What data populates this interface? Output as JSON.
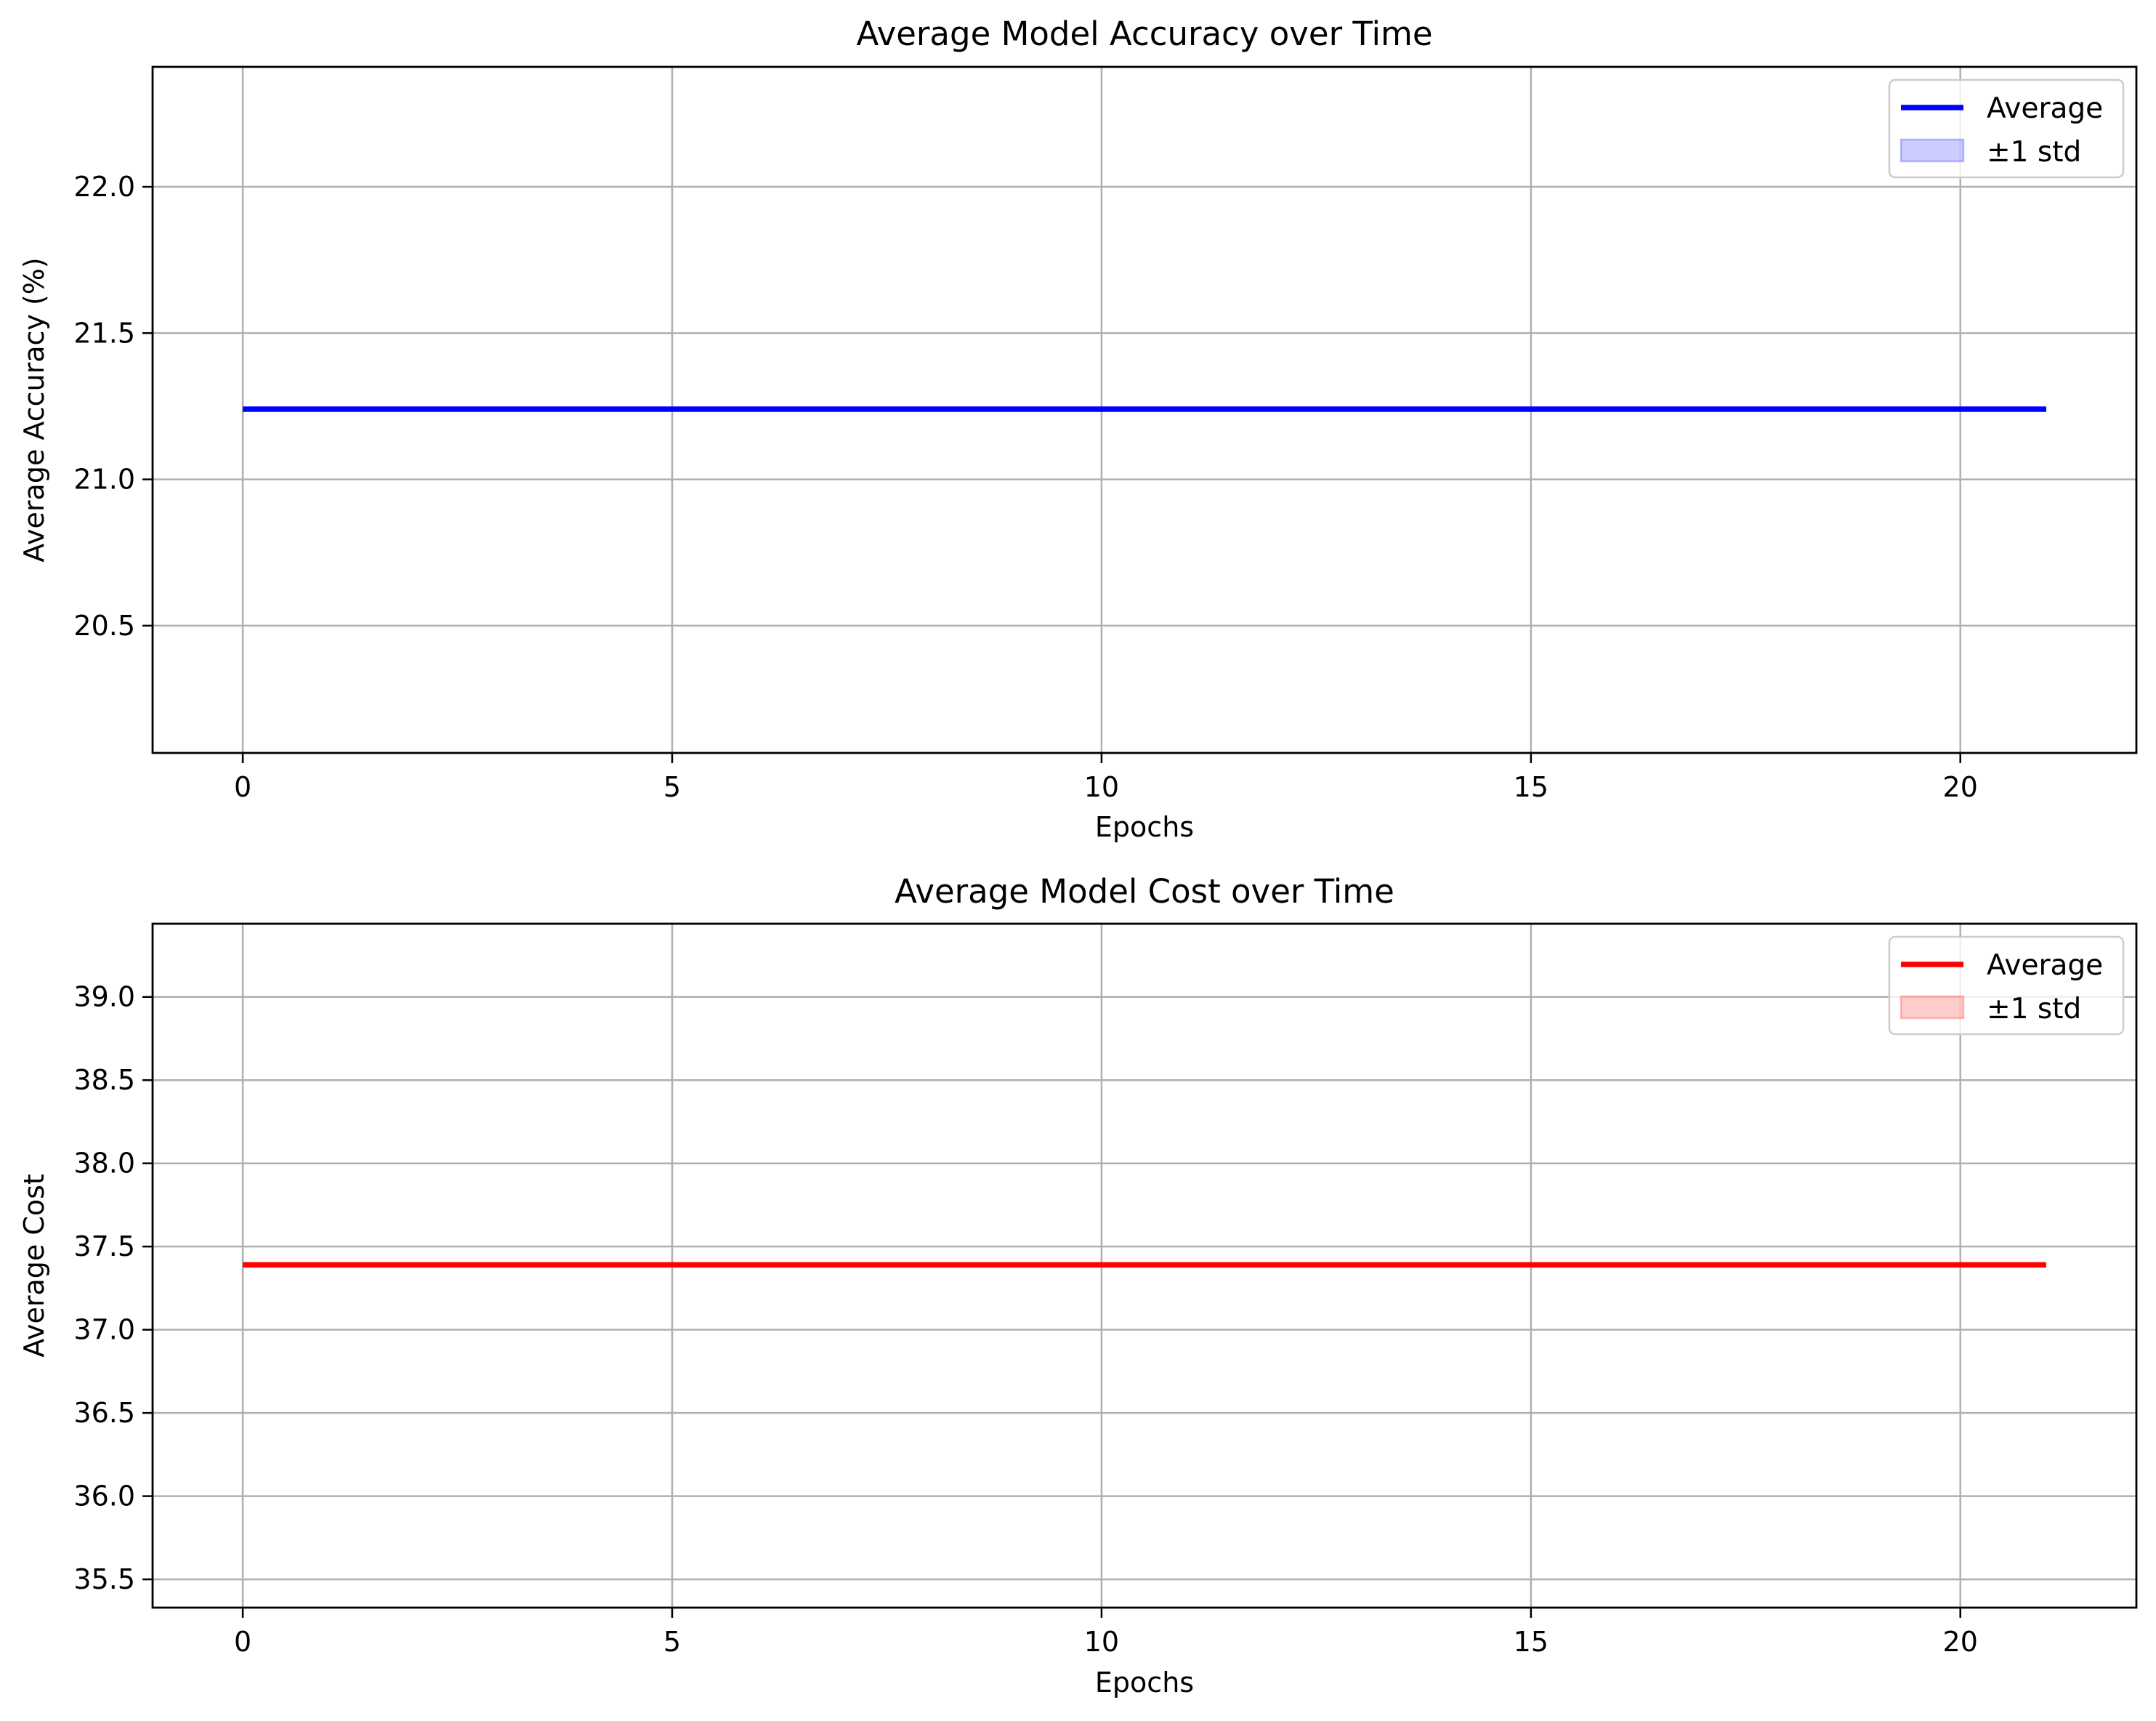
{
  "chart_data": [
    {
      "type": "line",
      "title": "Average Model Accuracy over Time",
      "xlabel": "Epochs",
      "ylabel": "Average Accuracy (%)",
      "xlim": [
        -1.05,
        22.05
      ],
      "ylim": [
        20.065,
        22.41
      ],
      "xticks": [
        0,
        5,
        10,
        15,
        20
      ],
      "xtick_labels": [
        "0",
        "5",
        "10",
        "15",
        "20"
      ],
      "yticks": [
        20.5,
        21.0,
        21.5,
        22.0
      ],
      "ytick_labels": [
        "20.5",
        "21.0",
        "21.5",
        "22.0"
      ],
      "grid": true,
      "legend_position": "top-right",
      "legend": [
        "Average",
        "±1 std"
      ],
      "series": [
        {
          "name": "Average",
          "color": "#0000ff",
          "x": [
            0,
            1,
            2,
            3,
            4,
            5,
            6,
            7,
            8,
            9,
            10,
            11,
            12,
            13,
            14,
            15,
            16,
            17,
            18,
            19,
            20,
            21
          ],
          "y": [
            21.24,
            21.24,
            21.24,
            21.24,
            21.24,
            21.24,
            21.24,
            21.24,
            21.24,
            21.24,
            21.24,
            21.24,
            21.24,
            21.24,
            21.24,
            21.24,
            21.24,
            21.24,
            21.24,
            21.24,
            21.24,
            21.24
          ]
        }
      ],
      "band": {
        "name": "±1 std",
        "color": "#0000ff",
        "lower": [
          21.24,
          21.24,
          21.24,
          21.24,
          21.24,
          21.24,
          21.24,
          21.24,
          21.24,
          21.24,
          21.24,
          21.24,
          21.24,
          21.24,
          21.24,
          21.24,
          21.24,
          21.24,
          21.24,
          21.24,
          21.24,
          21.24
        ],
        "upper": [
          21.24,
          21.24,
          21.24,
          21.24,
          21.24,
          21.24,
          21.24,
          21.24,
          21.24,
          21.24,
          21.24,
          21.24,
          21.24,
          21.24,
          21.24,
          21.24,
          21.24,
          21.24,
          21.24,
          21.24,
          21.24,
          21.24
        ]
      }
    },
    {
      "type": "line",
      "title": "Average Model Cost over Time",
      "xlabel": "Epochs",
      "ylabel": "Average Cost",
      "xlim": [
        -1.05,
        22.05
      ],
      "ylim": [
        35.33,
        39.44
      ],
      "xticks": [
        0,
        5,
        10,
        15,
        20
      ],
      "xtick_labels": [
        "0",
        "5",
        "10",
        "15",
        "20"
      ],
      "yticks": [
        35.5,
        36.0,
        36.5,
        37.0,
        37.5,
        38.0,
        38.5,
        39.0
      ],
      "ytick_labels": [
        "35.5",
        "36.0",
        "36.5",
        "37.0",
        "37.5",
        "38.0",
        "38.5",
        "39.0"
      ],
      "grid": true,
      "legend_position": "top-right",
      "legend": [
        "Average",
        "±1 std"
      ],
      "series": [
        {
          "name": "Average",
          "color": "#ff0000",
          "x": [
            0,
            1,
            2,
            3,
            4,
            5,
            6,
            7,
            8,
            9,
            10,
            11,
            12,
            13,
            14,
            15,
            16,
            17,
            18,
            19,
            20,
            21
          ],
          "y": [
            37.39,
            37.39,
            37.39,
            37.39,
            37.39,
            37.39,
            37.39,
            37.39,
            37.39,
            37.39,
            37.39,
            37.39,
            37.39,
            37.39,
            37.39,
            37.39,
            37.39,
            37.39,
            37.39,
            37.39,
            37.39,
            37.39
          ]
        }
      ],
      "band": {
        "name": "±1 std",
        "color": "#ff0000",
        "lower": [
          37.39,
          37.39,
          37.39,
          37.39,
          37.39,
          37.39,
          37.39,
          37.39,
          37.39,
          37.39,
          37.39,
          37.39,
          37.39,
          37.39,
          37.39,
          37.39,
          37.39,
          37.39,
          37.39,
          37.39,
          37.39,
          37.39
        ],
        "upper": [
          37.39,
          37.39,
          37.39,
          37.39,
          37.39,
          37.39,
          37.39,
          37.39,
          37.39,
          37.39,
          37.39,
          37.39,
          37.39,
          37.39,
          37.39,
          37.39,
          37.39,
          37.39,
          37.39,
          37.39,
          37.39,
          37.39
        ]
      }
    }
  ]
}
